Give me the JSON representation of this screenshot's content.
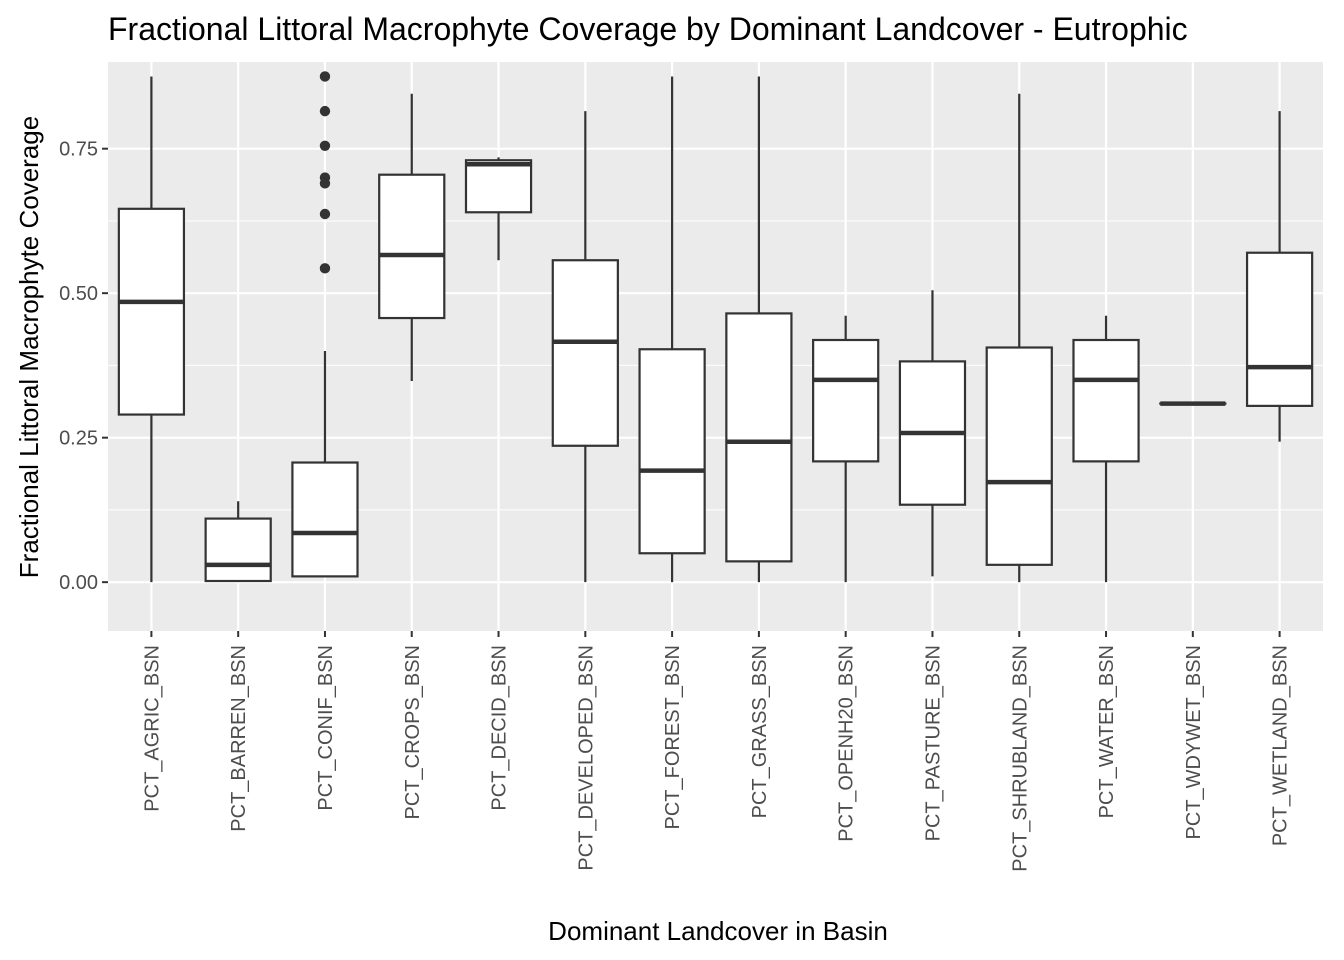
{
  "chart_data": {
    "type": "box",
    "title": "Fractional Littoral Macrophyte Coverage by Dominant Landcover - Eutrophic",
    "xlabel": "Dominant Landcover in Basin",
    "ylabel": "Fractional Littoral Macrophyte Coverage",
    "ylim": [
      -0.0845,
      0.9
    ],
    "y_ticks": [
      0.0,
      0.25,
      0.5,
      0.75
    ],
    "y_tick_labels": [
      "0.00",
      "0.25",
      "0.50",
      "0.75"
    ],
    "grid": true,
    "colors": {
      "panel": "#ebebeb",
      "grid": "#ffffff",
      "box_fill": "#ffffff",
      "box_line": "#333333",
      "text": "#000000",
      "tick_text": "#4d4d4d"
    },
    "categories": [
      "PCT_AGRIC_BSN",
      "PCT_BARREN_BSN",
      "PCT_CONIF_BSN",
      "PCT_CROPS_BSN",
      "PCT_DECID_BSN",
      "PCT_DEVELOPED_BSN",
      "PCT_FOREST_BSN",
      "PCT_GRASS_BSN",
      "PCT_OPENH20_BSN",
      "PCT_PASTURE_BSN",
      "PCT_SHRUBLAND_BSN",
      "PCT_WATER_BSN",
      "PCT_WDYWET_BSN",
      "PCT_WETLAND_BSN"
    ],
    "boxes": [
      {
        "category": "PCT_AGRIC_BSN",
        "whisker_low": 0.0,
        "q1": 0.29,
        "median": 0.485,
        "q3": 0.646,
        "whisker_high": 0.875,
        "outliers": []
      },
      {
        "category": "PCT_BARREN_BSN",
        "whisker_low": 0.002,
        "q1": 0.002,
        "median": 0.03,
        "q3": 0.11,
        "whisker_high": 0.14,
        "outliers": []
      },
      {
        "category": "PCT_CONIF_BSN",
        "whisker_low": 0.01,
        "q1": 0.01,
        "median": 0.085,
        "q3": 0.207,
        "whisker_high": 0.4,
        "outliers": [
          0.543,
          0.637,
          0.69,
          0.7,
          0.755,
          0.815,
          0.875
        ]
      },
      {
        "category": "PCT_CROPS_BSN",
        "whisker_low": 0.348,
        "q1": 0.457,
        "median": 0.566,
        "q3": 0.705,
        "whisker_high": 0.845,
        "outliers": []
      },
      {
        "category": "PCT_DECID_BSN",
        "whisker_low": 0.557,
        "q1": 0.64,
        "median": 0.723,
        "q3": 0.73,
        "whisker_high": 0.735,
        "outliers": []
      },
      {
        "category": "PCT_DEVELOPED_BSN",
        "whisker_low": 0.0,
        "q1": 0.236,
        "median": 0.416,
        "q3": 0.557,
        "whisker_high": 0.815,
        "outliers": []
      },
      {
        "category": "PCT_FOREST_BSN",
        "whisker_low": 0.0,
        "q1": 0.05,
        "median": 0.193,
        "q3": 0.403,
        "whisker_high": 0.875,
        "outliers": []
      },
      {
        "category": "PCT_GRASS_BSN",
        "whisker_low": 0.0,
        "q1": 0.036,
        "median": 0.243,
        "q3": 0.465,
        "whisker_high": 0.875,
        "outliers": []
      },
      {
        "category": "PCT_OPENH20_BSN",
        "whisker_low": 0.0,
        "q1": 0.209,
        "median": 0.35,
        "q3": 0.419,
        "whisker_high": 0.461,
        "outliers": []
      },
      {
        "category": "PCT_PASTURE_BSN",
        "whisker_low": 0.01,
        "q1": 0.134,
        "median": 0.258,
        "q3": 0.382,
        "whisker_high": 0.505,
        "outliers": []
      },
      {
        "category": "PCT_SHRUBLAND_BSN",
        "whisker_low": 0.0,
        "q1": 0.03,
        "median": 0.173,
        "q3": 0.406,
        "whisker_high": 0.845,
        "outliers": []
      },
      {
        "category": "PCT_WATER_BSN",
        "whisker_low": 0.0,
        "q1": 0.209,
        "median": 0.35,
        "q3": 0.419,
        "whisker_high": 0.461,
        "outliers": []
      },
      {
        "category": "PCT_WDYWET_BSN",
        "whisker_low": 0.309,
        "q1": 0.309,
        "median": 0.309,
        "q3": 0.309,
        "whisker_high": 0.309,
        "outliers": []
      },
      {
        "category": "PCT_WETLAND_BSN",
        "whisker_low": 0.243,
        "q1": 0.305,
        "median": 0.372,
        "q3": 0.57,
        "whisker_high": 0.815,
        "outliers": []
      }
    ]
  }
}
